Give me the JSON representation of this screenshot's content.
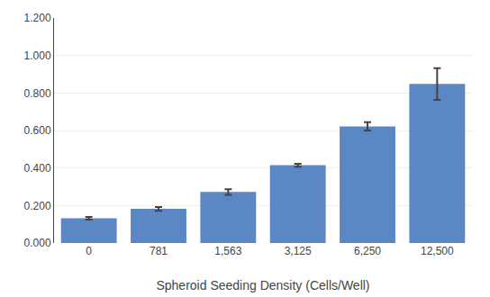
{
  "chart_data": {
    "type": "bar",
    "xlabel": "Spheroid Seeding Density (Cells/Well)",
    "categories": [
      "0",
      "781",
      "1,563",
      "3,125",
      "6,250",
      "12,500"
    ],
    "values": [
      0.132,
      0.182,
      0.272,
      0.415,
      0.622,
      0.848
    ],
    "errors": [
      0.007,
      0.01,
      0.015,
      0.008,
      0.022,
      0.085
    ],
    "color": "#5B87C5",
    "ylim": [
      0.0,
      1.2
    ],
    "yticks": [
      {
        "value": 0.0,
        "label": "0.000"
      },
      {
        "value": 0.2,
        "label": "0.200"
      },
      {
        "value": 0.4,
        "label": "0.400"
      },
      {
        "value": 0.6,
        "label": "0.600"
      },
      {
        "value": 0.8,
        "label": "0.800"
      },
      {
        "value": 1.0,
        "label": "1.000"
      },
      {
        "value": 1.2,
        "label": "1.200"
      }
    ],
    "grid": true
  }
}
